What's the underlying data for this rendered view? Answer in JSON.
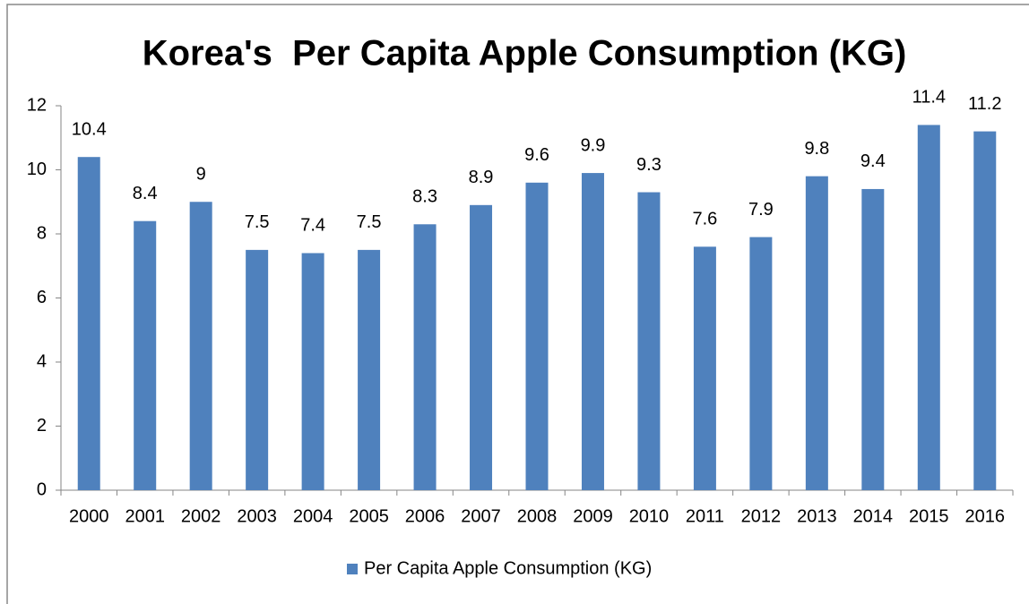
{
  "chart_data": {
    "type": "bar",
    "title": "Korea's  Per Capita Apple Consumption (KG)",
    "categories": [
      "2000",
      "2001",
      "2002",
      "2003",
      "2004",
      "2005",
      "2006",
      "2007",
      "2008",
      "2009",
      "2010",
      "2011",
      "2012",
      "2013",
      "2014",
      "2015",
      "2016"
    ],
    "series": [
      {
        "name": "Per Capita Apple Consumption (KG)",
        "color": "#4f81bd",
        "values": [
          10.4,
          8.4,
          9,
          7.5,
          7.4,
          7.5,
          8.3,
          8.9,
          9.6,
          9.9,
          9.3,
          7.6,
          7.9,
          9.8,
          9.4,
          11.4,
          11.2
        ]
      }
    ],
    "ylim": [
      0,
      12
    ],
    "yticks": [
      0,
      2,
      4,
      6,
      8,
      10,
      12
    ],
    "grid": false,
    "legend": "bottom"
  }
}
